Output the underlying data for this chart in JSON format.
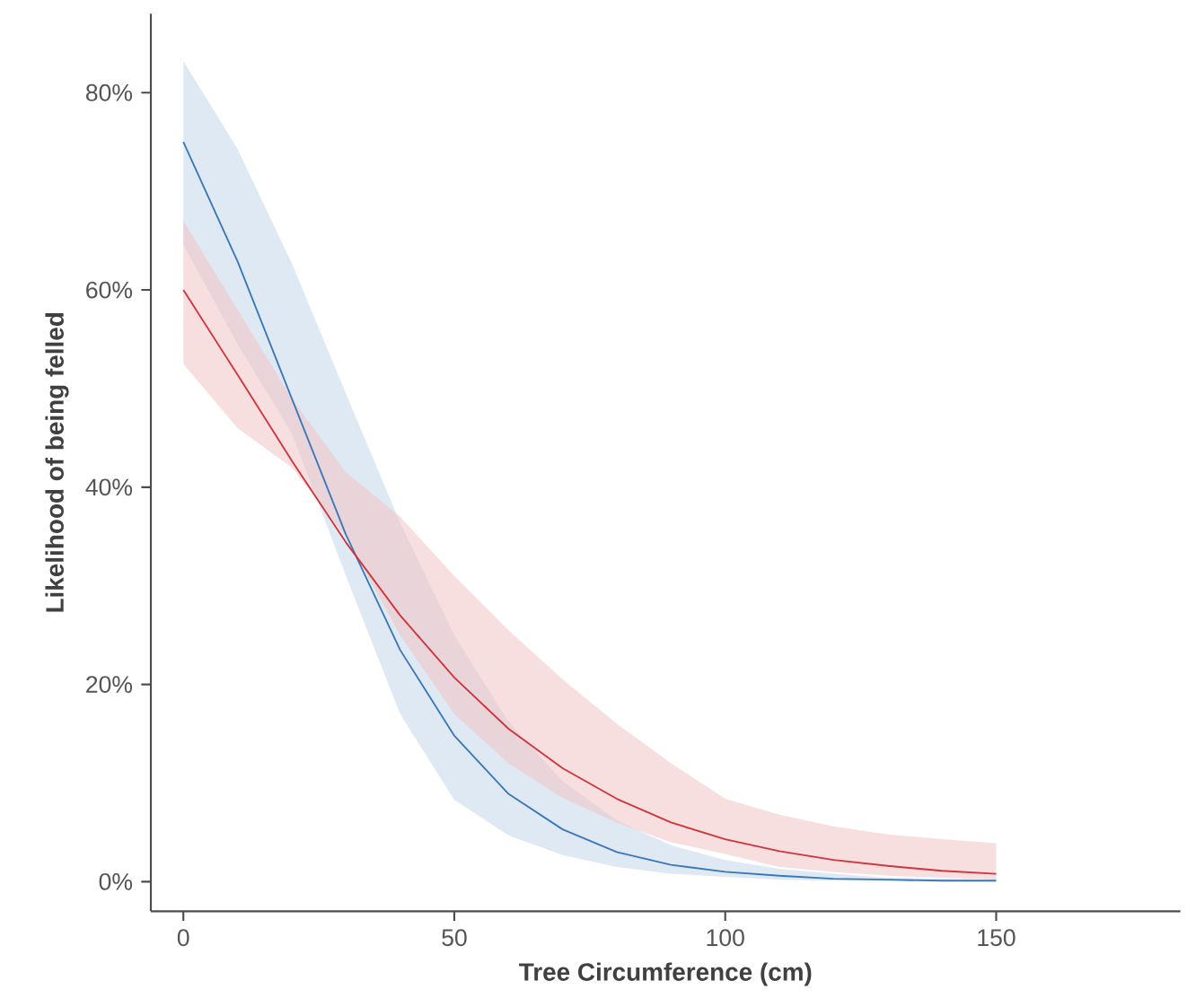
{
  "chart_data": {
    "type": "line",
    "xlabel": "Tree Circumference (cm)",
    "ylabel": "Likelihood of being felled",
    "x": [
      0,
      10,
      20,
      30,
      40,
      50,
      60,
      70,
      80,
      90,
      100,
      110,
      120,
      130,
      140,
      150
    ],
    "xlim": [
      -6,
      184
    ],
    "ylim": [
      -3,
      88
    ],
    "xticks": [
      0,
      50,
      100,
      150
    ],
    "yticks": [
      {
        "value": 0,
        "label": "0%"
      },
      {
        "value": 20,
        "label": "20%"
      },
      {
        "value": 40,
        "label": "40%"
      },
      {
        "value": 60,
        "label": "60%"
      },
      {
        "value": 80,
        "label": "80%"
      }
    ],
    "series": [
      {
        "color": "#3a78b8",
        "values": [
          75,
          62.9,
          49,
          35.2,
          23.5,
          14.8,
          8.9,
          5.3,
          3,
          1.7,
          1,
          0.6,
          0.3,
          0.2,
          0.1,
          0.1
        ],
        "lower": [
          64.6,
          54.5,
          45.5,
          31,
          17,
          8.3,
          4.7,
          2.7,
          1.5,
          0.8,
          0.5,
          0.2,
          0.1,
          0.1,
          0,
          0
        ],
        "upper": [
          83.2,
          74.3,
          62.7,
          49.5,
          36.4,
          25,
          16.2,
          10.2,
          6.2,
          3.7,
          2.2,
          1.3,
          0.8,
          0.4,
          0.3,
          0.2
        ]
      },
      {
        "color": "#d0343c",
        "values": [
          60,
          51.4,
          42.7,
          34.4,
          27,
          20.7,
          15.5,
          11.5,
          8.4,
          6,
          4.3,
          3.1,
          2.2,
          1.6,
          1.1,
          0.8
        ],
        "lower": [
          52.5,
          46,
          42,
          35,
          25,
          17,
          12,
          8.5,
          6,
          4,
          2.8,
          1.5,
          1,
          0.6,
          0.4,
          0.2
        ],
        "upper": [
          67,
          58,
          49,
          41.5,
          37,
          31,
          25.5,
          20.5,
          16,
          12,
          8.4,
          6.8,
          5.6,
          4.8,
          4.3,
          3.9
        ]
      }
    ]
  }
}
